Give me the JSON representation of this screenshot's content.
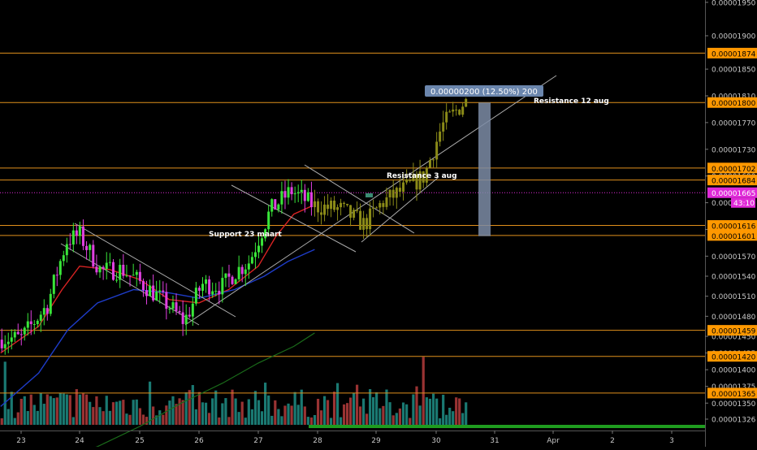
{
  "colors": {
    "background": "#000000",
    "up_candle": "#39e639",
    "down_candle": "#e040e0",
    "post_candle": "#8b8b18",
    "hline": "#e0901c",
    "label_bg": "#ff9800",
    "current_price_bg": "#e02ad8",
    "ma_red": "#d92323",
    "ma_blue": "#1e3cc8",
    "ma_green": "#1a6b1a",
    "trend_line": "#aaaaaa",
    "volume_up": "#1f8e86",
    "volume_down": "#b43c3c",
    "measure_box": "#7c8ca6"
  },
  "chart_data": {
    "type": "candlestick",
    "x_ticks": [
      "23",
      "24",
      "25",
      "26",
      "27",
      "28",
      "29",
      "30",
      "31",
      "Apr",
      "2",
      "3"
    ],
    "price_axis_labels": [
      "0.00001950",
      "0.00001900",
      "0.00001850",
      "0.00001810",
      "0.00001770",
      "0.00001730",
      "0.00001690",
      "0.00001650",
      "0.00001610",
      "0.00001570",
      "0.00001540",
      "0.00001510",
      "0.00001480",
      "0.00001450",
      "0.00001425",
      "0.00001400",
      "0.00001375",
      "0.00001350",
      "0.00001326"
    ],
    "horizontal_levels": [
      {
        "price": "0.00001874"
      },
      {
        "price": "0.00001800"
      },
      {
        "price": "0.00001702"
      },
      {
        "price": "0.00001684"
      },
      {
        "price": "0.00001616"
      },
      {
        "price": "0.00001601"
      },
      {
        "price": "0.00001459"
      },
      {
        "price": "0.00001420"
      },
      {
        "price": "0.00001365"
      }
    ],
    "current_price": "0.00001665",
    "countdown": "43:10",
    "measure_label": "0.00000200 (12.50%) 200",
    "annotations": [
      {
        "text": "Resistance 12 aug"
      },
      {
        "text": "Resistance 3 aug"
      },
      {
        "text": "Support 23 maart"
      }
    ]
  }
}
